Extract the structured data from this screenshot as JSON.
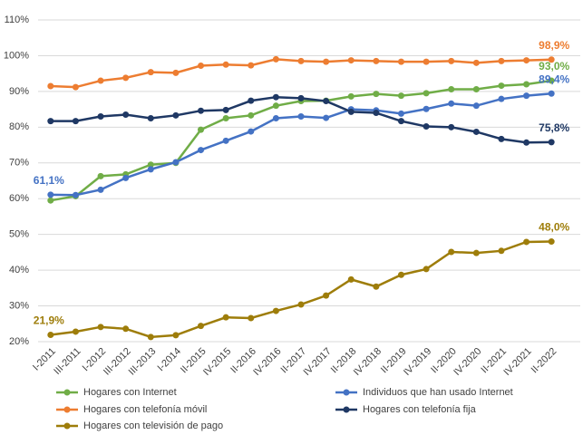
{
  "chart_data": {
    "type": "line",
    "categories": [
      "I-2011",
      "III-2011",
      "I-2012",
      "III-2012",
      "III-2013",
      "I-2014",
      "II-2015",
      "IV-2015",
      "II-2016",
      "IV-2016",
      "II-2017",
      "IV-2017",
      "II-2018",
      "IV-2018",
      "II-2019",
      "IV-2019",
      "II-2020",
      "IV-2020",
      "II-2021",
      "IV-2021",
      "II-2022"
    ],
    "series": [
      {
        "name": "Hogares con Internet",
        "color": "#70ad47",
        "values": [
          59.5,
          60.7,
          66.3,
          66.8,
          69.5,
          70.0,
          79.3,
          82.5,
          83.3,
          86.0,
          87.3,
          87.4,
          88.6,
          89.3,
          88.8,
          89.5,
          90.6,
          90.6,
          91.6,
          92.0,
          93.0
        ],
        "value_labels": [
          null,
          null,
          null,
          null,
          null,
          null,
          null,
          null,
          null,
          null,
          null,
          null,
          null,
          null,
          null,
          null,
          null,
          null,
          null,
          null,
          "93,0%"
        ]
      },
      {
        "name": "Individuos que han usado Internet",
        "color": "#4472c4",
        "values": [
          61.1,
          61.0,
          62.5,
          65.8,
          68.2,
          70.2,
          73.6,
          76.2,
          78.8,
          82.5,
          83.0,
          82.6,
          85.0,
          84.7,
          83.8,
          85.1,
          86.6,
          86.0,
          87.9,
          88.8,
          89.4
        ],
        "value_labels": [
          "61,1%",
          null,
          null,
          null,
          null,
          null,
          null,
          null,
          null,
          null,
          null,
          null,
          null,
          null,
          null,
          null,
          null,
          null,
          null,
          null,
          "89,4%"
        ]
      },
      {
        "name": "Hogares con telefonía móvil",
        "color": "#ed7d31",
        "values": [
          91.5,
          91.2,
          93.0,
          93.8,
          95.4,
          95.2,
          97.2,
          97.5,
          97.3,
          99.0,
          98.5,
          98.3,
          98.7,
          98.5,
          98.3,
          98.3,
          98.5,
          98.0,
          98.5,
          98.7,
          98.9
        ],
        "value_labels": [
          null,
          null,
          null,
          null,
          null,
          null,
          null,
          null,
          null,
          null,
          null,
          null,
          null,
          null,
          null,
          null,
          null,
          null,
          null,
          null,
          "98,9%"
        ]
      },
      {
        "name": "Hogares con telefonía fija",
        "color": "#1f3864",
        "values": [
          81.7,
          81.7,
          83.0,
          83.5,
          82.5,
          83.3,
          84.6,
          84.8,
          87.4,
          88.4,
          88.1,
          87.3,
          84.3,
          84.0,
          81.7,
          80.2,
          80.0,
          78.7,
          76.7,
          75.7,
          75.8
        ],
        "value_labels": [
          null,
          null,
          null,
          null,
          null,
          null,
          null,
          null,
          null,
          null,
          null,
          null,
          null,
          null,
          null,
          null,
          null,
          null,
          null,
          null,
          "75,8%"
        ]
      },
      {
        "name": "Hogares con televisión de pago",
        "color": "#9e7d0a",
        "values": [
          21.9,
          22.8,
          24.1,
          23.6,
          21.3,
          21.8,
          24.4,
          26.8,
          26.6,
          28.6,
          30.4,
          32.9,
          37.4,
          35.4,
          38.7,
          40.3,
          45.1,
          44.8,
          45.4,
          47.9,
          48.0
        ],
        "value_labels": [
          "21,9%",
          null,
          null,
          null,
          null,
          null,
          null,
          null,
          null,
          null,
          null,
          null,
          null,
          null,
          null,
          null,
          null,
          null,
          null,
          null,
          "48,0%"
        ]
      }
    ],
    "ylim": [
      20,
      110
    ],
    "yticks": [
      {
        "value": 20,
        "label": "20%"
      },
      {
        "value": 30,
        "label": "30%"
      },
      {
        "value": 40,
        "label": "40%"
      },
      {
        "value": 50,
        "label": "50%"
      },
      {
        "value": 60,
        "label": "60%"
      },
      {
        "value": 70,
        "label": "70%"
      },
      {
        "value": 80,
        "label": "80%"
      },
      {
        "value": 90,
        "label": "90%"
      },
      {
        "value": 100,
        "label": "100%"
      },
      {
        "value": 110,
        "label": "110%"
      }
    ],
    "grid": true
  }
}
